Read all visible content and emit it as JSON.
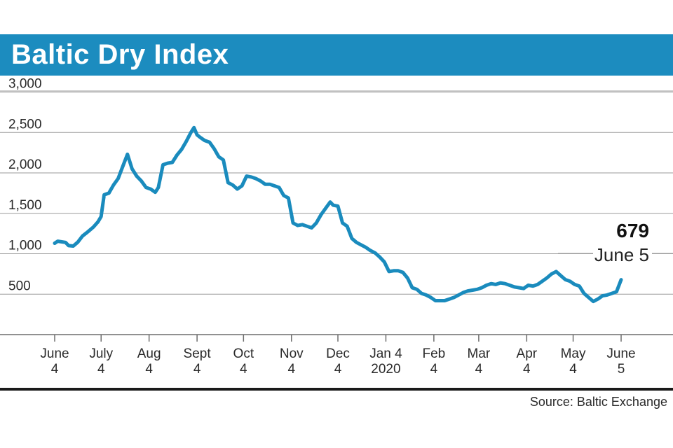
{
  "header": {
    "title": "Baltic Dry Index"
  },
  "source": "Source: Baltic Exchange",
  "colors": {
    "accent": "#1c8cbf",
    "line": "#1a8bbd"
  },
  "chart_data": {
    "type": "line",
    "title": "Baltic Dry Index",
    "xlabel": "",
    "ylabel": "",
    "ylim": [
      0,
      3000
    ],
    "y_ticks": [
      {
        "value": 500,
        "label": "500"
      },
      {
        "value": 1000,
        "label": "1,000"
      },
      {
        "value": 1500,
        "label": "1,500"
      },
      {
        "value": 2000,
        "label": "2,000"
      },
      {
        "value": 2500,
        "label": "2,500"
      },
      {
        "value": 3000,
        "label": "3,000"
      }
    ],
    "x_range_days": [
      0,
      366
    ],
    "x_ticks": [
      {
        "day": 0,
        "line1": "June",
        "line2": "4"
      },
      {
        "day": 30,
        "line1": "July",
        "line2": "4"
      },
      {
        "day": 61,
        "line1": "Aug",
        "line2": "4"
      },
      {
        "day": 92,
        "line1": "Sept",
        "line2": "4"
      },
      {
        "day": 122,
        "line1": "Oct",
        "line2": "4"
      },
      {
        "day": 153,
        "line1": "Nov",
        "line2": "4"
      },
      {
        "day": 183,
        "line1": "Dec",
        "line2": "4"
      },
      {
        "day": 214,
        "line1": "Jan 4",
        "line2": "2020"
      },
      {
        "day": 245,
        "line1": "Feb",
        "line2": "4"
      },
      {
        "day": 274,
        "line1": "Mar",
        "line2": "4"
      },
      {
        "day": 305,
        "line1": "Apr",
        "line2": "4"
      },
      {
        "day": 335,
        "line1": "May",
        "line2": "4"
      },
      {
        "day": 366,
        "line1": "June",
        "line2": "5"
      }
    ],
    "series": [
      {
        "name": "Baltic Dry Index",
        "x": [
          0,
          2,
          7,
          9,
          12,
          15,
          18,
          21,
          25,
          28,
          30,
          32,
          35,
          38,
          41,
          44,
          47,
          50,
          53,
          56,
          59,
          62,
          65,
          67,
          70,
          73,
          76,
          79,
          82,
          85,
          88,
          90,
          92,
          94,
          97,
          100,
          103,
          106,
          109,
          112,
          115,
          118,
          121,
          124,
          127,
          130,
          133,
          136,
          139,
          142,
          145,
          148,
          151,
          154,
          157,
          160,
          163,
          166,
          169,
          172,
          175,
          178,
          180,
          183,
          186,
          189,
          192,
          195,
          198,
          201,
          204,
          207,
          210,
          213,
          216,
          219,
          222,
          225,
          228,
          231,
          234,
          237,
          240,
          243,
          246,
          249,
          252,
          255,
          258,
          261,
          264,
          267,
          270,
          273,
          276,
          279,
          282,
          285,
          288,
          291,
          294,
          297,
          300,
          303,
          306,
          309,
          312,
          315,
          318,
          321,
          324,
          327,
          330,
          333,
          336,
          339,
          342,
          345,
          348,
          351,
          354,
          357,
          360,
          363,
          366
        ],
        "values": [
          1130,
          1155,
          1140,
          1100,
          1095,
          1145,
          1220,
          1265,
          1330,
          1395,
          1460,
          1730,
          1750,
          1850,
          1930,
          2080,
          2230,
          2050,
          1960,
          1900,
          1820,
          1800,
          1760,
          1820,
          2100,
          2120,
          2130,
          2220,
          2290,
          2390,
          2500,
          2560,
          2470,
          2440,
          2400,
          2380,
          2300,
          2200,
          2160,
          1880,
          1850,
          1800,
          1840,
          1960,
          1950,
          1930,
          1900,
          1860,
          1860,
          1840,
          1820,
          1720,
          1690,
          1380,
          1350,
          1360,
          1340,
          1320,
          1380,
          1480,
          1560,
          1640,
          1600,
          1590,
          1380,
          1340,
          1190,
          1140,
          1110,
          1080,
          1040,
          1010,
          960,
          900,
          780,
          790,
          790,
          770,
          700,
          580,
          560,
          510,
          490,
          460,
          420,
          420,
          420,
          440,
          460,
          490,
          520,
          540,
          550,
          560,
          580,
          610,
          630,
          620,
          640,
          630,
          610,
          590,
          580,
          570,
          610,
          600,
          620,
          660,
          700,
          750,
          780,
          730,
          680,
          660,
          620,
          600,
          510,
          460,
          410,
          440,
          480,
          490,
          510,
          530,
          679
        ]
      }
    ],
    "annotation": {
      "value_label": "679",
      "date_label": "June 5"
    }
  }
}
